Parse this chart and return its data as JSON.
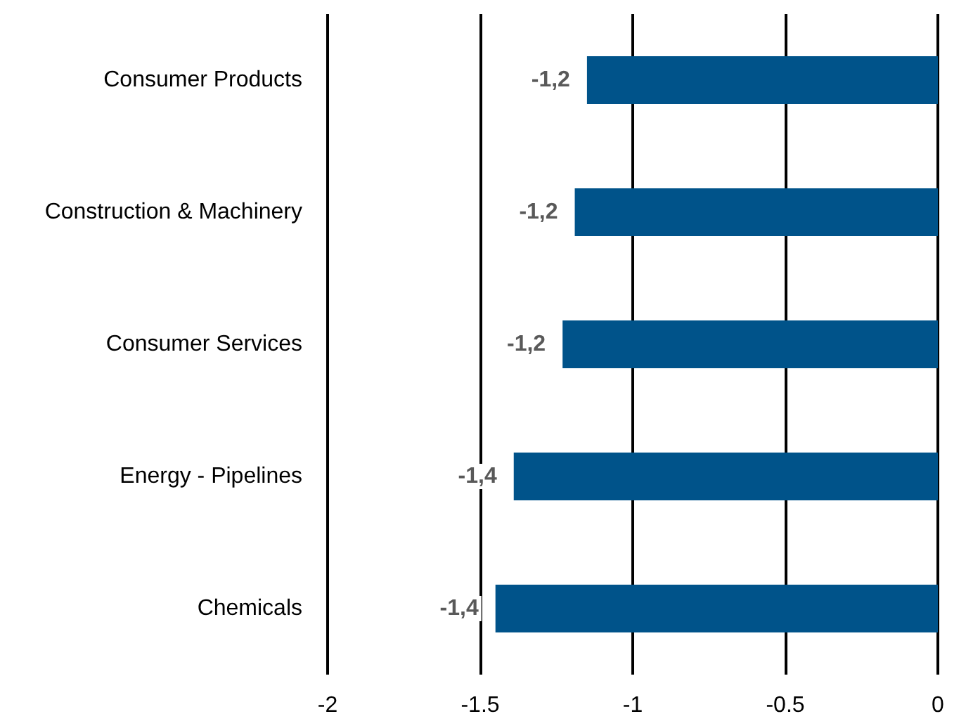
{
  "chart_data": {
    "type": "bar",
    "orientation": "horizontal",
    "categories": [
      "Consumer Products",
      "Construction & Machinery",
      "Consumer Services",
      "Energy - Pipelines",
      "Chemicals"
    ],
    "values": [
      -1.15,
      -1.19,
      -1.23,
      -1.39,
      -1.45
    ],
    "value_labels": [
      "-1,2",
      "-1,2",
      "-1,2",
      "-1,4",
      "-1,4"
    ],
    "color": "#00538a",
    "xlim": [
      -2,
      0
    ],
    "xticks": [
      -2,
      -1.5,
      -1,
      -0.5,
      0
    ],
    "grid": "x"
  }
}
